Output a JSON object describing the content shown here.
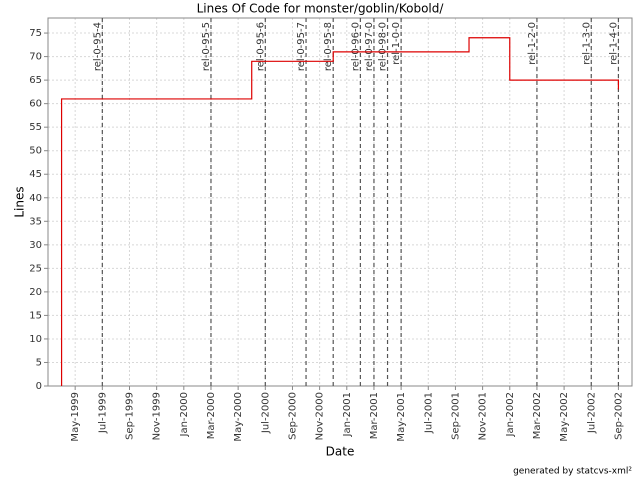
{
  "chart_data": {
    "type": "line",
    "title": "Lines Of Code for monster/goblin/Kobold/",
    "xlabel": "Date",
    "ylabel": "Lines",
    "annotation": "generated by statcvs-xml²",
    "grid": true,
    "xlim": [
      "1999-03",
      "2002-10"
    ],
    "xticks": [
      {
        "value": "1999-05",
        "label": "May-1999"
      },
      {
        "value": "1999-07",
        "label": "Jul-1999"
      },
      {
        "value": "1999-09",
        "label": "Sep-1999"
      },
      {
        "value": "1999-11",
        "label": "Nov-1999"
      },
      {
        "value": "2000-01",
        "label": "Jan-2000"
      },
      {
        "value": "2000-03",
        "label": "Mar-2000"
      },
      {
        "value": "2000-05",
        "label": "May-2000"
      },
      {
        "value": "2000-07",
        "label": "Jul-2000"
      },
      {
        "value": "2000-09",
        "label": "Sep-2000"
      },
      {
        "value": "2000-11",
        "label": "Nov-2000"
      },
      {
        "value": "2001-01",
        "label": "Jan-2001"
      },
      {
        "value": "2001-03",
        "label": "Mar-2001"
      },
      {
        "value": "2001-05",
        "label": "May-2001"
      },
      {
        "value": "2001-07",
        "label": "Jul-2001"
      },
      {
        "value": "2001-09",
        "label": "Sep-2001"
      },
      {
        "value": "2001-11",
        "label": "Nov-2001"
      },
      {
        "value": "2002-01",
        "label": "Jan-2002"
      },
      {
        "value": "2002-03",
        "label": "Mar-2002"
      },
      {
        "value": "2002-05",
        "label": "May-2002"
      },
      {
        "value": "2002-07",
        "label": "Jul-2002"
      },
      {
        "value": "2002-09",
        "label": "Sep-2002"
      }
    ],
    "ylim": [
      0,
      78.2
    ],
    "yticks": [
      0,
      5,
      10,
      15,
      20,
      25,
      30,
      35,
      40,
      45,
      50,
      55,
      60,
      65,
      70,
      75
    ],
    "color": "#dd0000",
    "x": [
      "1999-04",
      "1999-04",
      "2000-06",
      "2000-06",
      "2000-06",
      "2000-12",
      "2000-12",
      "2001-10",
      "2001-10",
      "2002-01",
      "2002-01",
      "2002-09",
      "2002-09"
    ],
    "values": [
      0,
      61,
      61,
      67,
      69,
      69,
      71,
      71,
      74,
      74,
      65,
      65,
      63
    ],
    "markers": [
      {
        "x": "1999-07",
        "label": "rel-0-95-4"
      },
      {
        "x": "2000-03",
        "label": "rel-0-95-5"
      },
      {
        "x": "2000-07",
        "label": "rel-0-95-6"
      },
      {
        "x": "2000-10",
        "label": "rel-0-95-7"
      },
      {
        "x": "2000-12",
        "label": "rel-0-95-8"
      },
      {
        "x": "2001-02",
        "label": "rel-0-96-0"
      },
      {
        "x": "2001-03",
        "label": "rel-0-97-0"
      },
      {
        "x": "2001-04",
        "label": "rel-0-98-0"
      },
      {
        "x": "2001-05",
        "label": "rel-1-0-0"
      },
      {
        "x": "2002-03",
        "label": "rel-1-2-0"
      },
      {
        "x": "2002-07",
        "label": "rel-1-3-0"
      },
      {
        "x": "2002-09",
        "label": "rel-1-4-0"
      }
    ]
  }
}
